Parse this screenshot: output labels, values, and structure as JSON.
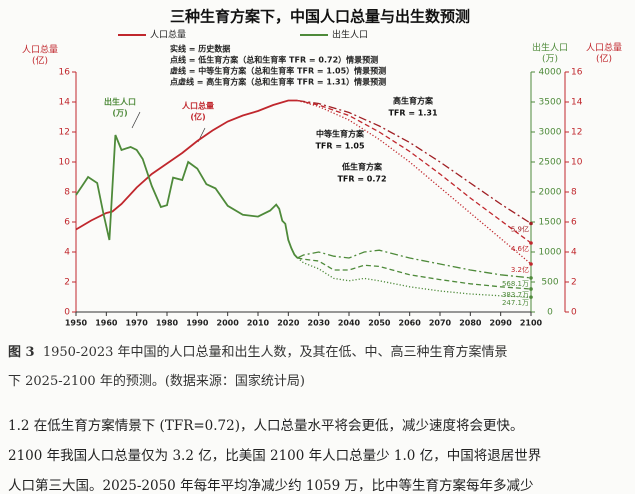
{
  "chart_data": {
    "type": "line",
    "title": "三种生育方案下，中国人口总量与出生数预测",
    "y_label": [
      "人口总量",
      "(亿)"
    ],
    "y2_label": [
      "出生人口",
      "(万)"
    ],
    "y3_label": [
      "人口总量",
      "(亿)"
    ],
    "style_notes": [
      "实线 = 历史数据",
      "点线 = 低生育方案（总和生育率 TFR = 0.72）情景预测",
      "虚线 = 中等生育方案（总和生育率 TFR = 1.05）情景预测",
      "点虚线 = 高生育方案（总和生育率 TFR = 1.31）情景预测"
    ],
    "annotations": [
      "出生人口",
      "(万)",
      "人口总量",
      "(亿)",
      "高生育方案",
      "TFR = 1.31",
      "中等生育方案",
      "TFR = 1.05",
      "低生育方案",
      "TFR = 0.72"
    ],
    "xlim": [
      1950,
      2100
    ],
    "xticks": [
      1950,
      1960,
      1970,
      1980,
      1990,
      2000,
      2010,
      2020,
      2030,
      2040,
      2050,
      2060,
      2070,
      2080,
      2090,
      2100
    ],
    "ylim": [
      0,
      16
    ],
    "yticks": [
      0,
      2,
      4,
      6,
      8,
      10,
      12,
      14,
      16
    ],
    "y2lim": [
      0,
      4000
    ],
    "y2ticks": [
      0,
      500,
      1000,
      1500,
      2000,
      2500,
      3000,
      3500,
      4000
    ],
    "series": [
      {
        "name": "人口总量",
        "color": "#c0272d",
        "style": "solid",
        "x": [
          1950,
          1955,
          1960,
          1962,
          1965,
          1970,
          1975,
          1980,
          1985,
          1990,
          1995,
          2000,
          2005,
          2010,
          2015,
          2020,
          2023
        ],
        "values": [
          5.5,
          6.1,
          6.6,
          6.7,
          7.2,
          8.3,
          9.2,
          9.9,
          10.6,
          11.4,
          12.1,
          12.7,
          13.1,
          13.4,
          13.8,
          14.1,
          14.1
        ]
      },
      {
        "name": "出生人口",
        "color": "#4e8a3a",
        "style": "solid",
        "axis": "y2",
        "x": [
          1950,
          1952,
          1954,
          1957,
          1959,
          1961,
          1963,
          1965,
          1968,
          1970,
          1972,
          1975,
          1978,
          1980,
          1982,
          1985,
          1987,
          1990,
          1993,
          1996,
          2000,
          2005,
          2010,
          2014,
          2016,
          2017,
          2018,
          2019,
          2020,
          2021,
          2022,
          2023
        ],
        "values": [
          1950,
          2100,
          2250,
          2150,
          1650,
          1200,
          2950,
          2700,
          2750,
          2700,
          2550,
          2100,
          1750,
          1780,
          2240,
          2200,
          2500,
          2390,
          2130,
          2060,
          1770,
          1620,
          1590,
          1690,
          1790,
          1720,
          1520,
          1470,
          1200,
          1062,
          956,
          902
        ]
      },
      {
        "color": "#a01f24",
        "style": "dashdot",
        "x": [
          2023,
          2030,
          2040,
          2050,
          2060,
          2070,
          2080,
          2090,
          2100
        ],
        "values": [
          14.1,
          13.9,
          13.3,
          12.4,
          11.3,
          10.0,
          8.6,
          7.2,
          5.9
        ],
        "value_labels": [
          null,
          null,
          null,
          null,
          null,
          null,
          null,
          null,
          "5.9亿"
        ]
      },
      {
        "color": "#c0272d",
        "style": "dashed",
        "x": [
          2023,
          2030,
          2040,
          2050,
          2060,
          2070,
          2080,
          2090,
          2100
        ],
        "values": [
          14.1,
          13.8,
          13.1,
          12.0,
          10.7,
          9.2,
          7.6,
          6.1,
          4.6
        ],
        "value_labels": [
          null,
          null,
          null,
          null,
          null,
          null,
          null,
          null,
          "4.6亿"
        ]
      },
      {
        "color": "#c0272d",
        "style": "dotted",
        "x": [
          2023,
          2030,
          2040,
          2050,
          2060,
          2070,
          2080,
          2090,
          2100
        ],
        "values": [
          14.1,
          13.7,
          12.8,
          11.5,
          10.0,
          8.3,
          6.6,
          4.9,
          3.2
        ],
        "value_labels": [
          null,
          null,
          null,
          null,
          null,
          null,
          null,
          null,
          "3.2亿"
        ]
      },
      {
        "color": "#4e8a3a",
        "style": "dashdot",
        "axis": "y2",
        "x": [
          2023,
          2025,
          2030,
          2035,
          2040,
          2045,
          2050,
          2060,
          2070,
          2080,
          2090,
          2100
        ],
        "values": [
          902,
          950,
          1000,
          930,
          900,
          1000,
          1030,
          900,
          800,
          700,
          620,
          568.1
        ],
        "value_labels": [
          null,
          null,
          null,
          null,
          null,
          null,
          null,
          null,
          null,
          null,
          null,
          "568.1万"
        ]
      },
      {
        "color": "#4e8a3a",
        "style": "dashed",
        "axis": "y2",
        "x": [
          2023,
          2025,
          2030,
          2035,
          2040,
          2045,
          2050,
          2060,
          2070,
          2080,
          2090,
          2100
        ],
        "values": [
          902,
          880,
          850,
          700,
          700,
          780,
          760,
          620,
          540,
          470,
          420,
          383.7
        ],
        "value_labels": [
          null,
          null,
          null,
          null,
          null,
          null,
          null,
          null,
          null,
          null,
          null,
          "383.7万"
        ]
      },
      {
        "color": "#4e8a3a",
        "style": "dotted",
        "axis": "y2",
        "x": [
          2023,
          2025,
          2030,
          2035,
          2040,
          2045,
          2050,
          2060,
          2070,
          2080,
          2090,
          2100
        ],
        "values": [
          902,
          820,
          720,
          560,
          520,
          560,
          520,
          420,
          350,
          300,
          270,
          247.1
        ],
        "value_labels": [
          null,
          null,
          null,
          null,
          null,
          null,
          null,
          null,
          null,
          null,
          null,
          "247.1万"
        ]
      }
    ]
  },
  "caption": {
    "label": "图 3",
    "lines": [
      "1950-2023 年中国的人口总量和出生人数，及其在低、中、高三种生育方案情景",
      "下 2025-2100 年的预测。(数据来源：国家统计局)"
    ]
  },
  "paragraph": [
    "1.2 在低生育方案情景下 (TFR=0.72)，人口总量水平将会更低，减少速度将会更快。",
    "2100 年我国人口总量仅为 3.2 亿，比美国 2100 年人口总量少 1.0 亿，中国将退居世界",
    "人口第三大国。2025-2050 年每年平均净减少约 1059 万，比中等生育方案每年多减少"
  ]
}
